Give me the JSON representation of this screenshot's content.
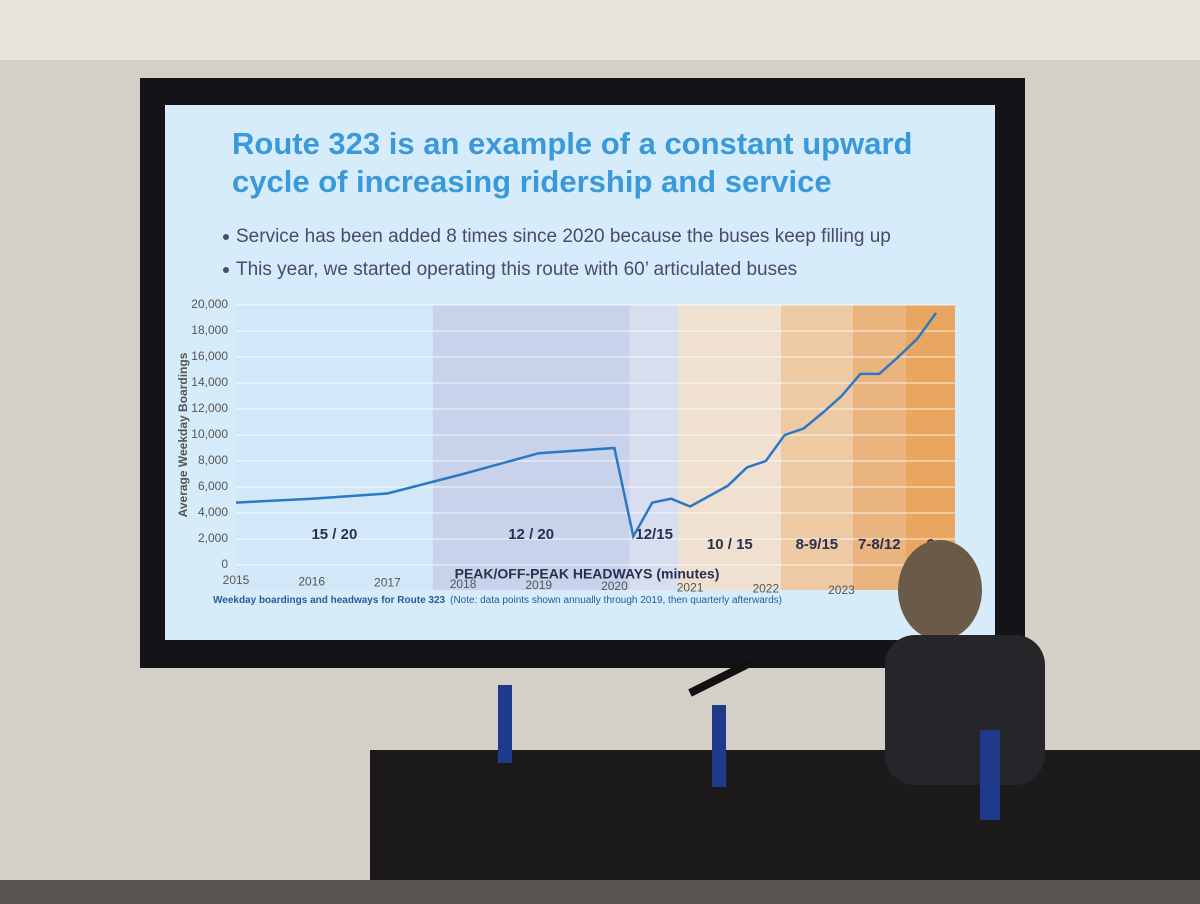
{
  "slide": {
    "title": [
      "Route 323 is an example of a constant upward",
      "cycle of increasing ridership and service"
    ],
    "bullets": [
      "Service has been added 8 times since 2020 because the buses keep filling up",
      "This year, we started operating this route with 60’ articulated buses"
    ]
  },
  "chart_data": {
    "type": "line",
    "y_label": "Average Weekday Boardings",
    "x_label": "PEAK/OFF-PEAK HEADWAYS (minutes)",
    "caption": "Weekday boardings and headways for Route 323",
    "note": "(Note: data points shown annually through 2019, then quarterly afterwards)",
    "x": [
      2015,
      2016,
      2017,
      2018,
      2019,
      2020,
      2020.25,
      2020.5,
      2020.75,
      2021,
      2021.25,
      2021.5,
      2021.75,
      2022,
      2022.25,
      2022.5,
      2022.75,
      2023,
      2023.25,
      2023.5,
      2023.75,
      2024,
      2024.25
    ],
    "values": [
      4800,
      5100,
      5500,
      7000,
      8600,
      9000,
      2200,
      4800,
      5100,
      4500,
      5300,
      6100,
      7500,
      8000,
      10000,
      10500,
      11700,
      13000,
      14700,
      14700,
      16000,
      17400,
      19400
    ],
    "color": "#2b78c4",
    "headways": [
      {
        "label": "15 / 20",
        "start": 2015,
        "end": 2017.6,
        "color": "#d2e8f8"
      },
      {
        "label": "12 / 20",
        "start": 2017.6,
        "end": 2020.2,
        "color": "#c8d2ea"
      },
      {
        "label": "12/15",
        "start": 2020.2,
        "end": 2020.85,
        "color": "#d8def0"
      },
      {
        "label": "10 / 15",
        "start": 2020.85,
        "end": 2022.2,
        "color": "#efe0d0"
      },
      {
        "label": "8-9/15",
        "start": 2022.2,
        "end": 2023.15,
        "color": "#edcaa4"
      },
      {
        "label": "7-8/12",
        "start": 2023.15,
        "end": 2023.85,
        "color": "#eab47e"
      },
      {
        "label": "6",
        "start": 2023.85,
        "end": 2024.5,
        "color": "#e8a660"
      }
    ],
    "xlim": [
      2015,
      2024.5
    ],
    "xticks": [
      2015,
      2016,
      2017,
      2018,
      2019,
      2020,
      2021,
      2022,
      2023
    ],
    "ylim": [
      0,
      20000
    ],
    "yticks": [
      0,
      {
        "value": 2000,
        "label": "2,000"
      },
      {
        "value": 4000,
        "label": "4,000"
      },
      {
        "value": 6000,
        "label": "6,000"
      },
      {
        "value": 8000,
        "label": "8,000"
      },
      {
        "value": 10000,
        "label": "10,000"
      },
      {
        "value": 12000,
        "label": "12,000"
      },
      {
        "value": 14000,
        "label": "14,000"
      },
      {
        "value": 16000,
        "label": "16,000"
      },
      {
        "value": 18000,
        "label": "18,000"
      },
      {
        "value": 20000,
        "label": "20,000"
      }
    ],
    "grid": true
  }
}
